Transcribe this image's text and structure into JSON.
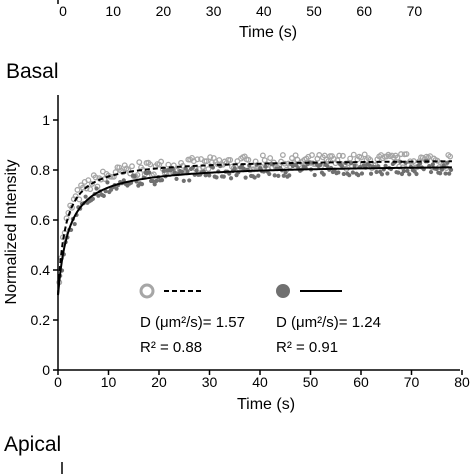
{
  "chart_data": {
    "type": "scatter",
    "panels": {
      "top_partial": {
        "xlabel": "Time (s)",
        "xticks": [
          "0",
          "10",
          "20",
          "30",
          "40",
          "50",
          "60",
          "70"
        ]
      },
      "basal": {
        "panel_label": "Basal",
        "xlabel": "Time (s)",
        "ylabel": "Normalized Intensity",
        "xlim": [
          0,
          80
        ],
        "ylim": [
          0,
          1.1
        ],
        "xticks": [
          "0",
          "10",
          "20",
          "30",
          "40",
          "50",
          "60",
          "70",
          "80"
        ],
        "yticks": [
          "0",
          "0.2",
          "0.4",
          "0.6",
          "0.8",
          "1"
        ],
        "series": [
          {
            "marker": "open-circle",
            "color": "#a6a6a6",
            "fit_style": "dashed",
            "fit": {
              "plateau": 0.845,
              "y0": 0.3,
              "half_time": 1.5
            },
            "legend_d": "D (μm²/s)= 1.57",
            "legend_r2": "R² = 0.88"
          },
          {
            "marker": "filled-circle",
            "color": "#707070",
            "fit_style": "solid",
            "fit": {
              "plateau": 0.825,
              "y0": 0.3,
              "half_time": 2.2
            },
            "legend_d": "D (μm²/s)= 1.24",
            "legend_r2": "R² = 0.91"
          }
        ]
      },
      "apical_partial": {
        "panel_label": "Apical"
      }
    }
  }
}
